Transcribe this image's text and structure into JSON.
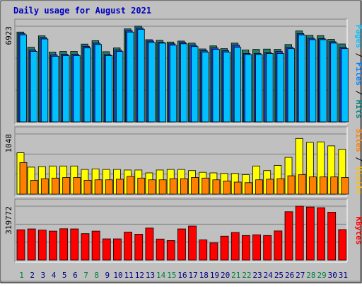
{
  "chart_data": {
    "type": "bar",
    "title": "Daily usage for August 2021",
    "categories": [
      "1",
      "2",
      "3",
      "4",
      "5",
      "6",
      "7",
      "8",
      "9",
      "10",
      "11",
      "12",
      "13",
      "14",
      "15",
      "16",
      "17",
      "18",
      "19",
      "20",
      "21",
      "22",
      "23",
      "24",
      "25",
      "26",
      "27",
      "28",
      "29",
      "30",
      "31"
    ],
    "weekend_color": "#008040",
    "weekday_color": "#000080",
    "weekend_days": [
      1,
      7,
      8,
      14,
      15,
      21,
      22,
      28,
      29
    ],
    "panels": [
      {
        "id": "top",
        "ymax_label": "6923",
        "ylim": [
          0,
          6923
        ],
        "ylabel_parts": [
          {
            "text": "Pages",
            "color": "#00c0ff"
          },
          {
            "text": " / ",
            "color": "#000000"
          },
          {
            "text": "Files",
            "color": "#0080ff"
          },
          {
            "text": " / ",
            "color": "#000000"
          },
          {
            "text": "Hits",
            "color": "#008080"
          }
        ],
        "series": [
          {
            "name": "Hits",
            "color": "#208060",
            "values": [
              6500,
              5400,
              6230,
              5050,
              5100,
              5100,
              5630,
              5880,
              5080,
              5350,
              6730,
              6923,
              5950,
              5900,
              5780,
              5850,
              5700,
              5280,
              5500,
              5300,
              5700,
              5200,
              5250,
              5270,
              5250,
              5600,
              6580,
              6260,
              6240,
              5970,
              5640
            ]
          },
          {
            "name": "Files",
            "color": "#2040ff",
            "values": [
              6400,
              5200,
              6100,
              4850,
              4900,
              4900,
              5470,
              5700,
              4870,
              5200,
              6600,
              6800,
              5850,
              5750,
              5650,
              5750,
              5550,
              5150,
              5350,
              5150,
              5550,
              4950,
              4950,
              5000,
              5100,
              5400,
              6390,
              6050,
              6020,
              5800,
              5400
            ]
          },
          {
            "name": "Pages",
            "color": "#00c0ff",
            "values": [
              6300,
              5100,
              6000,
              4750,
              4800,
              4800,
              5350,
              5600,
              4800,
              5100,
              6500,
              6700,
              5750,
              5700,
              5550,
              5650,
              5450,
              5050,
              5250,
              5050,
              5400,
              4880,
              4880,
              4950,
              4950,
              5300,
              6300,
              5950,
              5950,
              5700,
              5300
            ]
          }
        ]
      },
      {
        "id": "middle",
        "ymax_label": "1048",
        "ylim": [
          0,
          1048
        ],
        "ylabel_parts": [
          {
            "text": "Sites",
            "color": "#ff8000"
          },
          {
            "text": " / ",
            "color": "#000000"
          },
          {
            "text": "Visits",
            "color": "#ffc000"
          }
        ],
        "series": [
          {
            "name": "Visits",
            "color": "#ffff00",
            "values": [
              720,
              470,
              480,
              490,
              490,
              490,
              430,
              440,
              430,
              430,
              420,
              420,
              370,
              420,
              430,
              430,
              410,
              380,
              370,
              360,
              360,
              340,
              490,
              410,
              500,
              640,
              970,
              900,
              910,
              840,
              780
            ]
          },
          {
            "name": "Sites",
            "color": "#ff8000",
            "values": [
              550,
              240,
              270,
              280,
              290,
              290,
              240,
              250,
              250,
              260,
              310,
              280,
              250,
              250,
              270,
              270,
              290,
              280,
              250,
              230,
              210,
              200,
              250,
              260,
              270,
              320,
              340,
              300,
              300,
              300,
              290
            ]
          }
        ]
      },
      {
        "id": "bottom",
        "ymax_label": "319772",
        "ylim": [
          0,
          319772
        ],
        "ylabel_parts": [
          {
            "text": "KBytes",
            "color": "#ff0000"
          }
        ],
        "series": [
          {
            "name": "KBytes",
            "color": "#ff0000",
            "values": [
              180000,
              185000,
              178000,
              172000,
              186000,
              185000,
              157000,
              172000,
              126000,
              126000,
              166000,
              154000,
              190000,
              125000,
              116000,
              185000,
              202000,
              120000,
              102000,
              142000,
              164000,
              146000,
              150000,
              146000,
              173000,
              287000,
              319772,
              315000,
              311000,
              284000,
              181000
            ]
          }
        ]
      }
    ]
  }
}
